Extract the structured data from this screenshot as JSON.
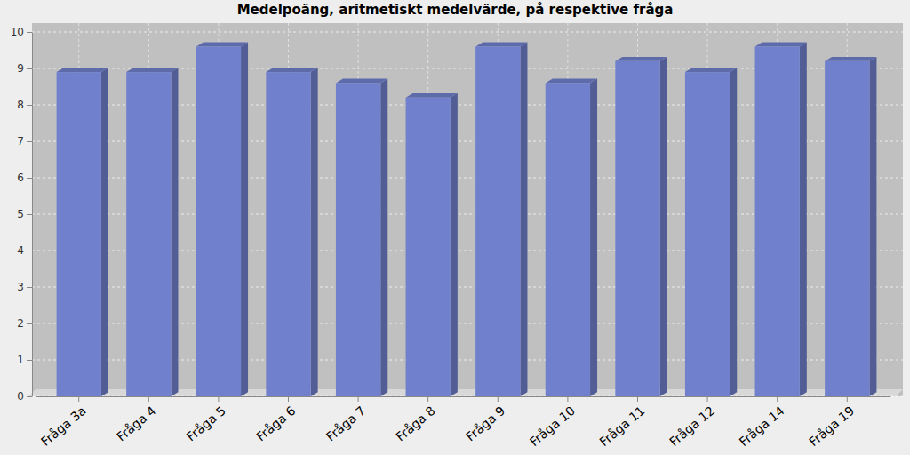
{
  "chart_data": {
    "type": "bar",
    "title": "Medelpoäng, aritmetiskt medelvärde, på respektive fråga",
    "categories": [
      "Fråga 3a",
      "Fråga 4",
      "Fråga 5",
      "Fråga 6",
      "Fråga 7",
      "Fråga 8",
      "Fråga 9",
      "Fråga 10",
      "Fråga 11",
      "Fråga 12",
      "Fråga 14",
      "Fråga 19"
    ],
    "values": [
      8.9,
      8.9,
      9.6,
      8.9,
      8.6,
      8.2,
      9.6,
      8.6,
      9.2,
      8.9,
      9.6,
      9.2
    ],
    "color": "#7080cc",
    "ylim": [
      0,
      10
    ],
    "yticks": [
      0,
      1,
      2,
      3,
      4,
      5,
      6,
      7,
      8,
      9,
      10
    ],
    "grid": true
  }
}
